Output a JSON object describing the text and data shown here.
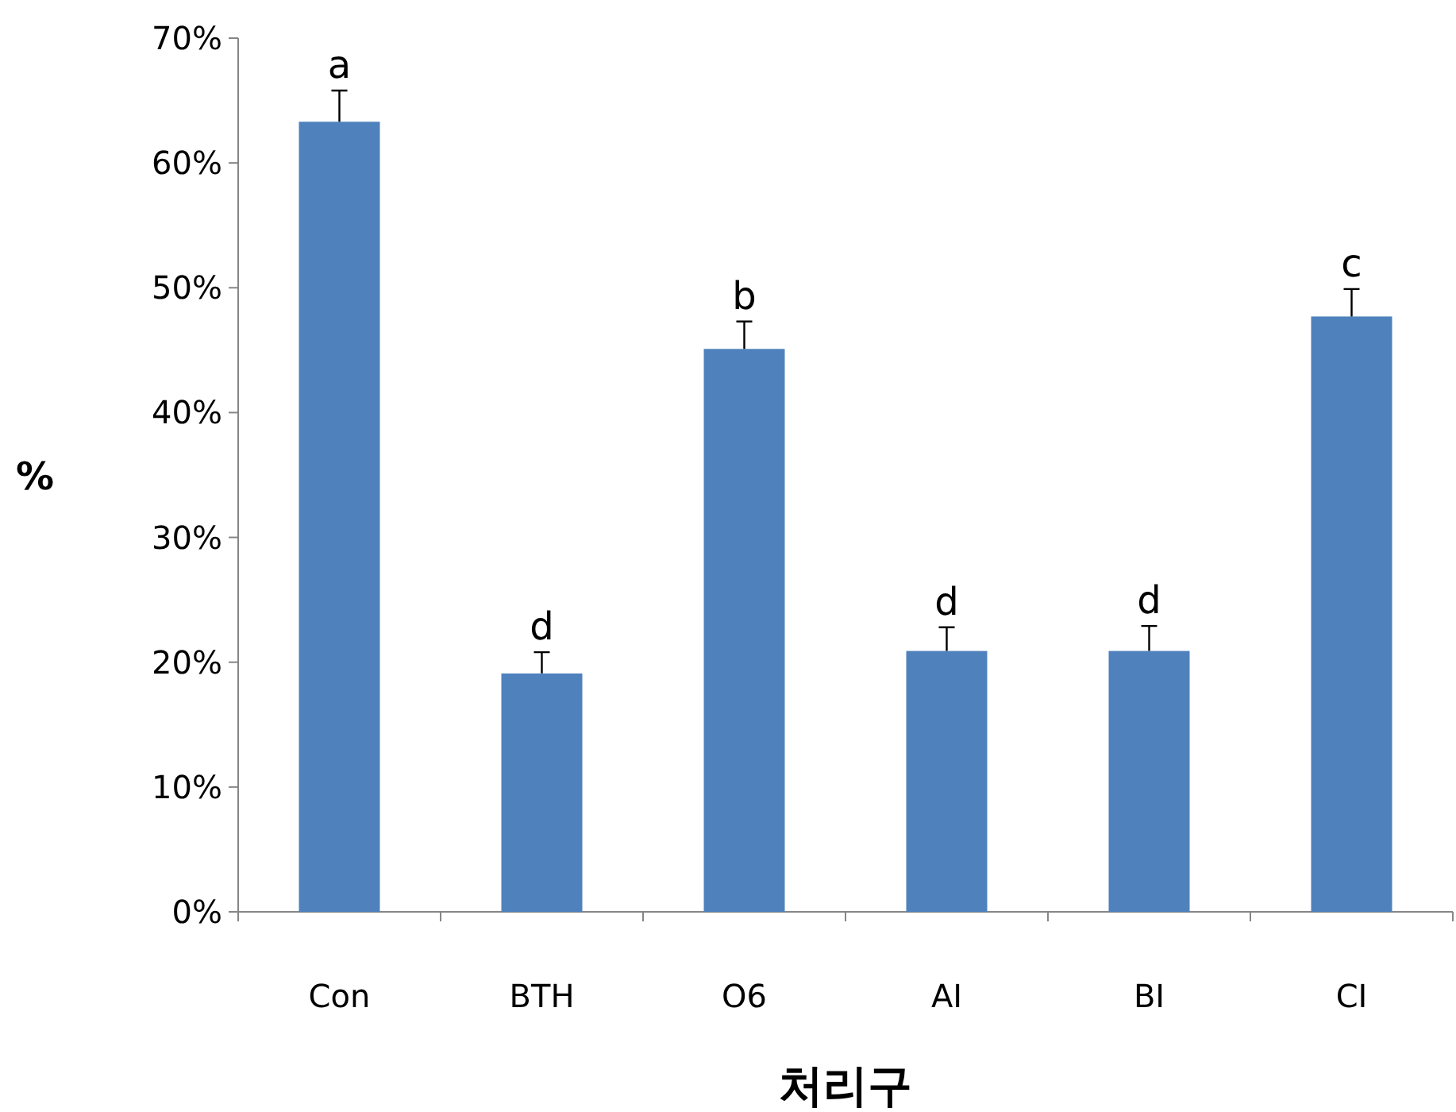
{
  "chart_data": {
    "type": "bar",
    "xlabel": "처리구",
    "ylabel": "%",
    "categories": [
      "Con",
      "BTH",
      "O6",
      "AI",
      "BI",
      "CI"
    ],
    "values": [
      63.3,
      19.1,
      45.1,
      20.9,
      20.9,
      47.7
    ],
    "errors": [
      [
        63.3,
        65.8
      ],
      [
        19.1,
        20.8
      ],
      [
        45.1,
        47.3
      ],
      [
        20.9,
        22.8
      ],
      [
        20.9,
        22.9
      ],
      [
        47.7,
        49.9
      ]
    ],
    "color": "#4f81bd",
    "ylim": [
      0,
      70
    ],
    "yticks": [
      {
        "value": 0,
        "label": "0%"
      },
      {
        "value": 10,
        "label": "10%"
      },
      {
        "value": 20,
        "label": "20%"
      },
      {
        "value": 30,
        "label": "30%"
      },
      {
        "value": 40,
        "label": "40%"
      },
      {
        "value": 50,
        "label": "50%"
      },
      {
        "value": 60,
        "label": "60%"
      },
      {
        "value": 70,
        "label": "70%"
      }
    ],
    "annotations": [
      {
        "text": "a",
        "x": "Con",
        "y": 65.8
      },
      {
        "text": "d",
        "x": "BTH",
        "y": 20.8
      },
      {
        "text": "b",
        "x": "O6",
        "y": 47.3
      },
      {
        "text": "d",
        "x": "AI",
        "y": 22.8
      },
      {
        "text": "d",
        "x": "BI",
        "y": 22.9
      },
      {
        "text": "c",
        "x": "CI",
        "y": 49.9
      }
    ],
    "grid": false
  }
}
